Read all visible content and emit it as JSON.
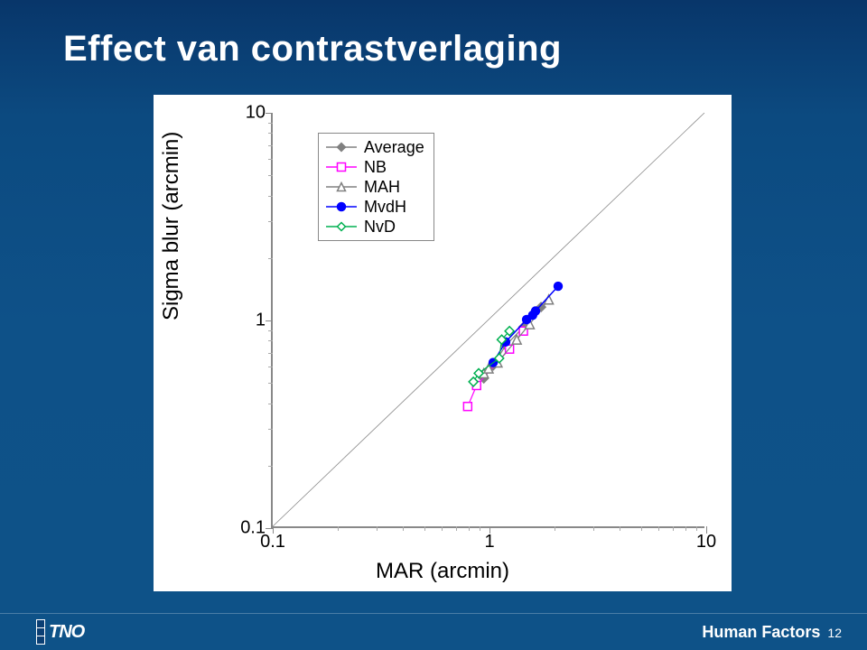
{
  "slide": {
    "title": "Effect van contrastverlaging",
    "background_gradient": [
      "#08366a",
      "#0e5288"
    ],
    "footer": {
      "label": "Human Factors",
      "page_number": "12"
    }
  },
  "chart": {
    "type": "scatter-line-loglog",
    "card_bg": "#ffffff",
    "axis_color": "#888888",
    "xlabel": "MAR (arcmin)",
    "ylabel": "Sigma blur (arcmin)",
    "label_fontsize": 24,
    "tick_fontsize": 20,
    "xlim": [
      0.1,
      10
    ],
    "ylim": [
      0.1,
      10
    ],
    "scale": "log",
    "x_ticks": [
      0.1,
      1,
      10
    ],
    "x_tick_labels": [
      "0.1",
      "1",
      "10"
    ],
    "y_ticks": [
      0.1,
      1,
      10
    ],
    "y_tick_labels": [
      "0.1",
      "1",
      "10"
    ],
    "diagonal_line": {
      "p1": [
        0.1,
        0.1
      ],
      "p2": [
        10,
        10
      ],
      "color": "#888888",
      "width": 0.8
    },
    "legend": {
      "position": "upper-left-inside",
      "border_color": "#888888",
      "fontsize": 18,
      "items": [
        {
          "key": "Average",
          "label": "Average",
          "marker": "diamond-filled",
          "color": "#808080",
          "line": true
        },
        {
          "key": "NB",
          "label": "NB",
          "marker": "square-open",
          "color": "#ff00ff",
          "line": true
        },
        {
          "key": "MAH",
          "label": "MAH",
          "marker": "triangle-open",
          "color": "#808080",
          "line": true
        },
        {
          "key": "MvdH",
          "label": "MvdH",
          "marker": "circle-filled",
          "color": "#0000ff",
          "line": true
        },
        {
          "key": "NvD",
          "label": "NvD",
          "marker": "diamond-open",
          "color": "#00b050",
          "line": true
        }
      ]
    },
    "series": {
      "Average": {
        "marker": "diamond-filled",
        "color": "#808080",
        "size": 10,
        "line_width": 1.2,
        "points": [
          [
            0.95,
            0.52
          ],
          [
            1.05,
            0.6
          ],
          [
            1.2,
            0.75
          ],
          [
            1.45,
            0.92
          ],
          [
            1.75,
            1.15
          ]
        ]
      },
      "NB": {
        "marker": "square-open",
        "color": "#ff00ff",
        "size": 9,
        "line_width": 1.2,
        "points": [
          [
            0.8,
            0.38
          ],
          [
            0.88,
            0.48
          ],
          [
            1.25,
            0.72
          ],
          [
            1.45,
            0.88
          ]
        ]
      },
      "MAH": {
        "marker": "triangle-open",
        "color": "#808080",
        "size": 10,
        "line_width": 1.2,
        "points": [
          [
            0.95,
            0.55
          ],
          [
            1.0,
            0.58
          ],
          [
            1.1,
            0.62
          ],
          [
            1.35,
            0.8
          ],
          [
            1.55,
            0.95
          ],
          [
            1.9,
            1.25
          ]
        ]
      },
      "MvdH": {
        "marker": "circle-filled",
        "color": "#0000ff",
        "size": 9,
        "line_width": 1.5,
        "points": [
          [
            1.05,
            0.62
          ],
          [
            1.2,
            0.78
          ],
          [
            1.5,
            1.0
          ],
          [
            1.6,
            1.05
          ],
          [
            1.65,
            1.1
          ],
          [
            2.1,
            1.45
          ]
        ]
      },
      "NvD": {
        "marker": "diamond-open",
        "color": "#00b050",
        "size": 10,
        "line_width": 1.2,
        "points": [
          [
            0.85,
            0.5
          ],
          [
            0.9,
            0.55
          ],
          [
            1.12,
            0.65
          ],
          [
            1.15,
            0.8
          ],
          [
            1.25,
            0.88
          ]
        ]
      }
    }
  }
}
